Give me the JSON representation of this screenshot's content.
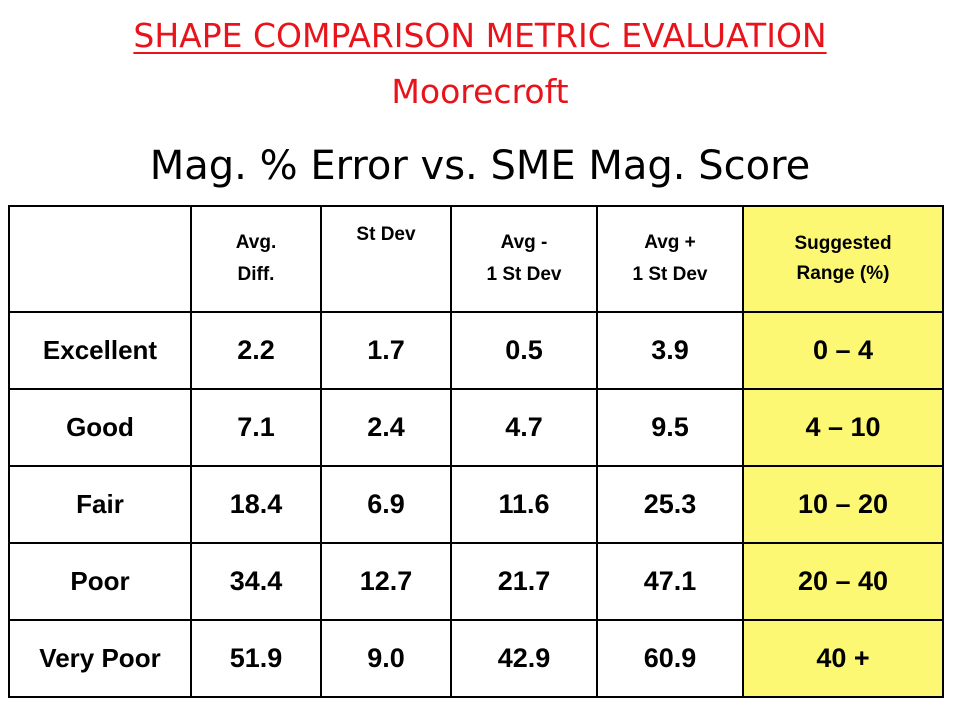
{
  "slide": {
    "title": "SHAPE COMPARISON METRIC EVALUATION",
    "subtitle": "Moorecroft",
    "heading": "Mag. % Error vs. SME Mag. Score"
  },
  "table": {
    "headers": [
      {
        "line1": "",
        "line2": ""
      },
      {
        "line1": "Avg.",
        "line2": "Diff."
      },
      {
        "line1": "St Dev",
        "line2": ""
      },
      {
        "line1": "Avg -",
        "line2": "1 St Dev"
      },
      {
        "line1": "Avg +",
        "line2": "1 St Dev"
      },
      {
        "line1": "Suggested",
        "line2": "Range (%)"
      }
    ],
    "rows": [
      {
        "label": "Excellent",
        "avg_diff": "2.2",
        "st_dev": "1.7",
        "avg_minus": "0.5",
        "avg_plus": "3.9",
        "range": "0 – 4"
      },
      {
        "label": "Good",
        "avg_diff": "7.1",
        "st_dev": "2.4",
        "avg_minus": "4.7",
        "avg_plus": "9.5",
        "range": "4 – 10"
      },
      {
        "label": "Fair",
        "avg_diff": "18.4",
        "st_dev": "6.9",
        "avg_minus": "11.6",
        "avg_plus": "25.3",
        "range": "10 – 20"
      },
      {
        "label": "Poor",
        "avg_diff": "34.4",
        "st_dev": "12.7",
        "avg_minus": "21.7",
        "avg_plus": "47.1",
        "range": "20 – 40"
      },
      {
        "label": "Very Poor",
        "avg_diff": "51.9",
        "st_dev": "9.0",
        "avg_minus": "42.9",
        "avg_plus": "60.9",
        "range": "40 +"
      }
    ]
  },
  "colors": {
    "title": "#e8141b",
    "highlight": "#fdf873"
  }
}
